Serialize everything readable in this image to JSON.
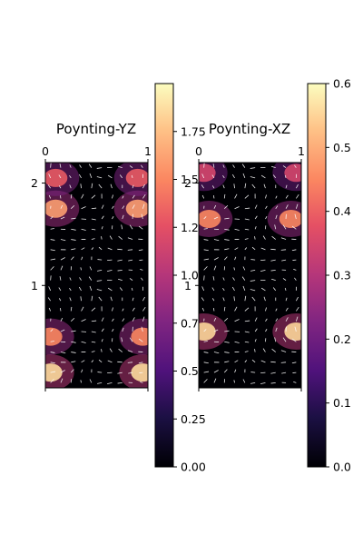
{
  "chart_data": [
    {
      "type": "heatmap",
      "title": "Poynting-YZ",
      "xlabel": "",
      "ylabel": "",
      "xlim": [
        0,
        1
      ],
      "ylim": [
        0,
        2.2
      ],
      "x_ticks": [
        "0",
        "1"
      ],
      "y_ticks": [
        "1",
        "2"
      ],
      "x_tick_values": [
        0,
        1
      ],
      "y_tick_values": [
        1,
        2
      ],
      "colormap": "magma",
      "quiver": true,
      "colorbar": {
        "range": [
          0,
          2.0
        ],
        "tick_values": [
          0,
          0.25,
          0.5,
          0.75,
          1.0,
          1.25,
          1.5,
          1.75
        ],
        "tick_labels": [
          "0.00",
          "0.25",
          "0.50",
          "0.75",
          "1.00",
          "1.25",
          "1.50",
          "1.75"
        ]
      },
      "hot_spots": [
        {
          "x": 0.05,
          "y": 0.15,
          "value": 1.85
        },
        {
          "x": 0.95,
          "y": 0.15,
          "value": 1.85
        },
        {
          "x": 0.05,
          "y": 0.5,
          "value": 1.5
        },
        {
          "x": 0.95,
          "y": 0.5,
          "value": 1.5
        },
        {
          "x": 0.1,
          "y": 1.75,
          "value": 1.6
        },
        {
          "x": 0.9,
          "y": 1.75,
          "value": 1.6
        },
        {
          "x": 0.1,
          "y": 2.05,
          "value": 1.3
        },
        {
          "x": 0.9,
          "y": 2.05,
          "value": 1.3
        }
      ]
    },
    {
      "type": "heatmap",
      "title": "Poynting-XZ",
      "xlabel": "",
      "ylabel": "",
      "xlim": [
        0,
        1
      ],
      "ylim": [
        0,
        2.2
      ],
      "x_ticks": [
        "0",
        "1"
      ],
      "y_ticks": [
        "1",
        "2"
      ],
      "x_tick_values": [
        0,
        1
      ],
      "y_tick_values": [
        1,
        2
      ],
      "colormap": "magma",
      "quiver": true,
      "colorbar": {
        "range": [
          0,
          0.6
        ],
        "tick_values": [
          0,
          0.1,
          0.2,
          0.3,
          0.4,
          0.5,
          0.6
        ],
        "tick_labels": [
          "0.0",
          "0.1",
          "0.2",
          "0.3",
          "0.4",
          "0.5",
          "0.6"
        ]
      },
      "hot_spots": [
        {
          "x": 0.05,
          "y": 0.55,
          "value": 0.55
        },
        {
          "x": 0.95,
          "y": 0.55,
          "value": 0.55
        },
        {
          "x": 0.1,
          "y": 1.65,
          "value": 0.45
        },
        {
          "x": 0.9,
          "y": 1.65,
          "value": 0.45
        },
        {
          "x": 0.05,
          "y": 2.1,
          "value": 0.35
        },
        {
          "x": 0.95,
          "y": 2.1,
          "value": 0.35
        }
      ]
    }
  ]
}
